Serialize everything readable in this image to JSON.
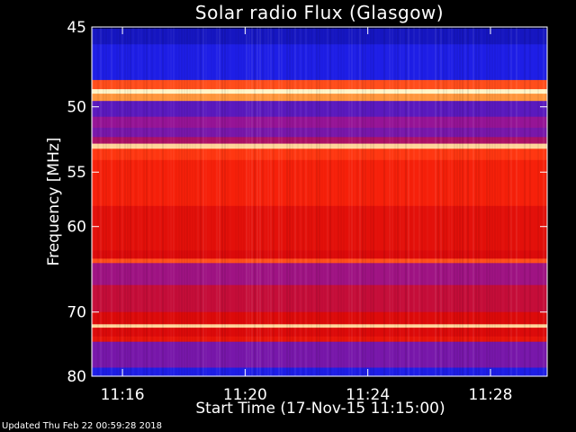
{
  "updated_text": "Updated Thu Feb 22 00:59:28 2018",
  "chart_data": {
    "type": "heatmap",
    "title": "Solar radio Flux (Glasgow)",
    "xlabel": "Start Time (17-Nov-15 11:15:00)",
    "ylabel": "Frequency [MHz]",
    "x_ticks": [
      "11:16",
      "11:20",
      "11:24",
      "11:28"
    ],
    "x_tick_values_min": [
      1,
      5,
      9,
      13
    ],
    "xlim_min": [
      0,
      14.85
    ],
    "y_ticks": [
      45,
      50,
      55,
      60,
      70,
      80
    ],
    "ylim": [
      45,
      80
    ],
    "y_scale": "reciprocal",
    "colormap": "blue-red-yellow",
    "bands": [
      {
        "freq": [
          44.5,
          45.1
        ],
        "level": 0.0
      },
      {
        "freq": [
          45.1,
          46.0
        ],
        "level": 0.15
      },
      {
        "freq": [
          46.0,
          48.2
        ],
        "level": 0.2
      },
      {
        "freq": [
          48.2,
          48.8
        ],
        "level": 0.75
      },
      {
        "freq": [
          48.8,
          49.1
        ],
        "level": 1.0
      },
      {
        "freq": [
          49.1,
          49.6
        ],
        "level": 0.85
      },
      {
        "freq": [
          49.6,
          50.7
        ],
        "level": 0.3
      },
      {
        "freq": [
          50.7,
          51.5
        ],
        "level": 0.4
      },
      {
        "freq": [
          51.5,
          52.2
        ],
        "level": 0.35
      },
      {
        "freq": [
          52.2,
          52.7
        ],
        "level": 0.45
      },
      {
        "freq": [
          52.7,
          53.1
        ],
        "level": 0.95
      },
      {
        "freq": [
          53.1,
          54.0
        ],
        "level": 0.72
      },
      {
        "freq": [
          54.0,
          58.0
        ],
        "level": 0.66
      },
      {
        "freq": [
          58.0,
          62.5
        ],
        "level": 0.58
      },
      {
        "freq": [
          62.5,
          63.4
        ],
        "level": 0.55
      },
      {
        "freq": [
          63.4,
          63.9
        ],
        "level": 0.75
      },
      {
        "freq": [
          63.9,
          66.5
        ],
        "level": 0.42
      },
      {
        "freq": [
          66.5,
          70.0
        ],
        "level": 0.5
      },
      {
        "freq": [
          70.0,
          71.7
        ],
        "level": 0.55
      },
      {
        "freq": [
          71.7,
          72.2
        ],
        "level": 0.95
      },
      {
        "freq": [
          72.2,
          73.5
        ],
        "level": 0.55
      },
      {
        "freq": [
          73.5,
          74.3
        ],
        "level": 0.6
      },
      {
        "freq": [
          74.3,
          78.5
        ],
        "level": 0.35
      },
      {
        "freq": [
          78.5,
          80.5
        ],
        "level": 0.2
      }
    ]
  }
}
